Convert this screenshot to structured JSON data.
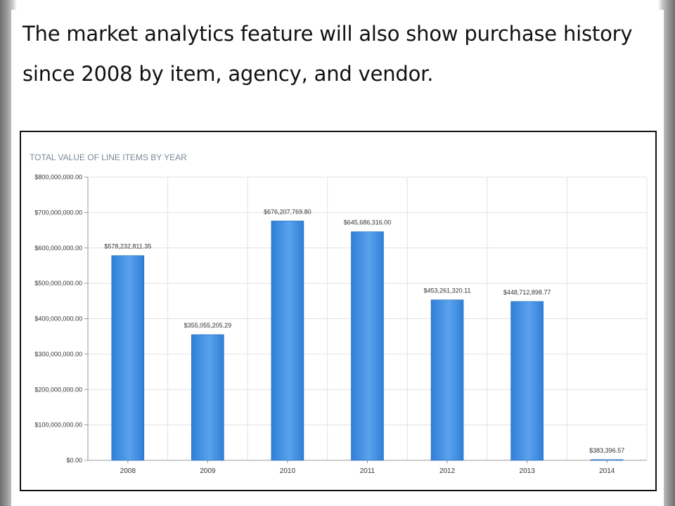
{
  "slide": {
    "heading": "The market analytics feature will also show purchase history since 2008 by item, agency, and vendor."
  },
  "chart_data": {
    "type": "bar",
    "title": "TOTAL VALUE OF LINE ITEMS BY YEAR",
    "xlabel": "",
    "ylabel": "",
    "categories": [
      "2008",
      "2009",
      "2010",
      "2011",
      "2012",
      "2013",
      "2014"
    ],
    "values": [
      578232811.35,
      355055205.29,
      676207769.8,
      645686316.0,
      453261320.11,
      448712898.77,
      383396.57
    ],
    "data_labels": [
      "$578,232,811.35",
      "$355,055,205.29",
      "$676,207,769.80",
      "$645,686,316.00",
      "$453,261,320.11",
      "$448,712,898.77",
      "$383,396.57"
    ],
    "ylim": [
      0,
      800000000
    ],
    "y_ticks": [
      0,
      100000000,
      200000000,
      300000000,
      400000000,
      500000000,
      600000000,
      700000000,
      800000000
    ],
    "y_tick_labels": [
      "$0.00",
      "$100,000,000.00",
      "$200,000,000.00",
      "$300,000,000.00",
      "$400,000,000.00",
      "$500,000,000.00",
      "$600,000,000.00",
      "$700,000,000.00",
      "$800,000,000.00"
    ],
    "grid": true,
    "legend": "none",
    "bar_color": "#2f7fd8",
    "bar_color_light": "#5aa2ec"
  }
}
